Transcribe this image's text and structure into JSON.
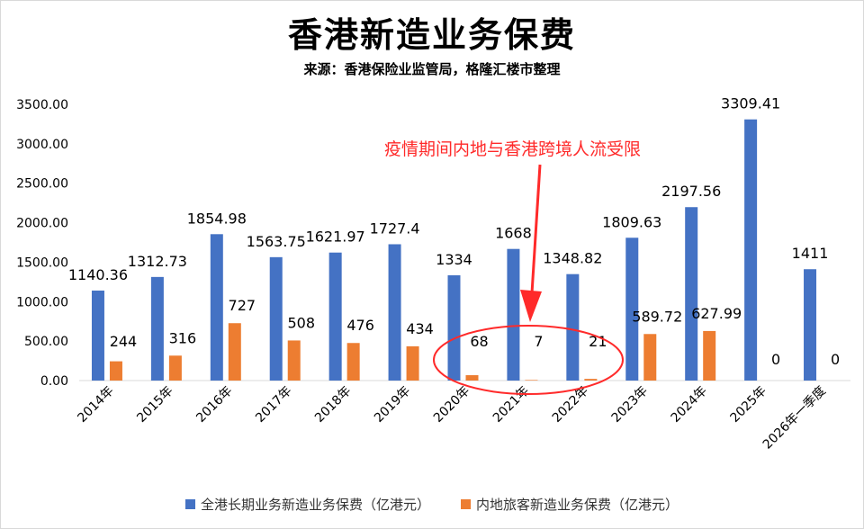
{
  "title": "香港新造业务保费",
  "subtitle": "来源：香港保险业监管局，格隆汇楼市整理",
  "annotation": "疫情期间内地与香港跨境人流受限",
  "colors": {
    "series1": "#4472c4",
    "series2": "#ed7d31",
    "annotation": "#ff2a2a",
    "grid": "#d9d9d9"
  },
  "chart_data": {
    "type": "bar",
    "title": "香港新造业务保费",
    "categories": [
      "2014年",
      "2015年",
      "2016年",
      "2017年",
      "2018年",
      "2019年",
      "2020年",
      "2021年",
      "2022年",
      "2023年",
      "2024年",
      "2025年",
      "2026年一季度"
    ],
    "ylim": [
      0,
      3500
    ],
    "yticks": [
      "0.00",
      "500.00",
      "1000.00",
      "1500.00",
      "2000.00",
      "2500.00",
      "3000.00",
      "3500.00"
    ],
    "grid": false,
    "legend": "bottom",
    "series": [
      {
        "name": "全港长期业务新造业务保费（亿港元）",
        "values": [
          1140.36,
          1312.73,
          1854.98,
          1563.75,
          1621.97,
          1727.4,
          1334,
          1668,
          1348.82,
          1809.63,
          2197.56,
          3309.41,
          1411
        ],
        "labels": [
          "1140.36",
          "1312.73",
          "1854.98",
          "1563.75",
          "1621.97",
          "1727.4",
          "1334",
          "1668",
          "1348.82",
          "1809.63",
          "2197.56",
          "3309.41",
          "1411"
        ]
      },
      {
        "name": "内地旅客新造业务保费（亿港元）",
        "values": [
          244,
          316,
          727,
          508,
          476,
          434,
          68,
          7,
          21,
          589.72,
          627.99,
          0,
          0
        ],
        "labels": [
          "244",
          "316",
          "727",
          "508",
          "476",
          "434",
          "68",
          "7",
          "21",
          "589.72",
          "627.99",
          "0",
          "0"
        ]
      }
    ]
  }
}
